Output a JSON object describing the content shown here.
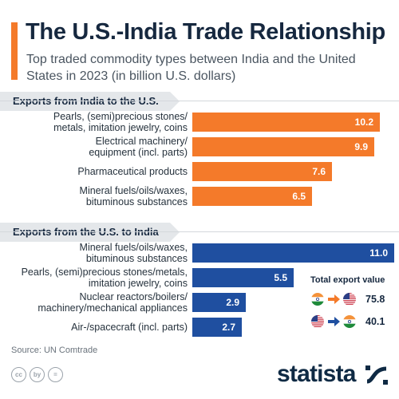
{
  "header": {
    "title": "The U.S.-India Trade Relationship",
    "subtitle": "Top traded commodity types between India and the United States in 2023 (in billion U.S. dollars)"
  },
  "chart_data": {
    "type": "bar",
    "orientation": "horizontal",
    "title": "The U.S.-India Trade Relationship",
    "subtitle": "Top traded commodity types between India and the United States in 2023 (in billion U.S. dollars)",
    "xlim": [
      0,
      11
    ],
    "grid": false,
    "groups": [
      {
        "name": "Exports from India to the U.S.",
        "color": "#f47a2a",
        "categories": [
          [
            "Pearls, (semi)precious stones/",
            "metals, imitation jewelry, coins"
          ],
          [
            "Electrical machinery/",
            "equipment (incl. parts)"
          ],
          [
            "Pharmaceutical products"
          ],
          [
            "Mineral fuels/oils/waxes,",
            "bituminous substances"
          ]
        ],
        "values": [
          10.2,
          9.9,
          7.6,
          6.5
        ],
        "value_labels": [
          "10.2",
          "9.9",
          "7.6",
          "6.5"
        ]
      },
      {
        "name": "Exports from the U.S. to India",
        "color": "#1f4fa0",
        "categories": [
          [
            "Mineral fuels/oils/waxes,",
            "bituminous substances"
          ],
          [
            "Pearls, (semi)precious stones/metals,",
            "imitation jewelry, coins"
          ],
          [
            "Nuclear reactors/boilers/",
            "machinery/mechanical appliances"
          ],
          [
            "Air-/spacecraft (incl. parts)"
          ]
        ],
        "values": [
          11.0,
          5.5,
          2.9,
          2.7
        ],
        "value_labels": [
          "11.0",
          "5.5",
          "2.9",
          "2.7"
        ]
      }
    ],
    "legend": {
      "title": "Total export value",
      "placement": "bottom-right",
      "entries": [
        {
          "from_flag": "india-flag",
          "to_flag": "us-flag",
          "value": "75.8"
        },
        {
          "from_flag": "us-flag",
          "to_flag": "india-flag",
          "value": "40.1"
        }
      ]
    }
  },
  "footer": {
    "source": "Source: UN Comtrade",
    "brand": "statista",
    "license_icons": [
      "cc",
      "by",
      "="
    ]
  },
  "icons": {
    "license": [
      "creative-commons-icon",
      "attribution-icon",
      "no-derivatives-icon"
    ],
    "brand_mark": "statista-logo-icon"
  },
  "colors": {
    "india_exports": "#f47a2a",
    "us_exports": "#1f4fa0",
    "title": "#16283f",
    "accent": "#f47a2a"
  }
}
